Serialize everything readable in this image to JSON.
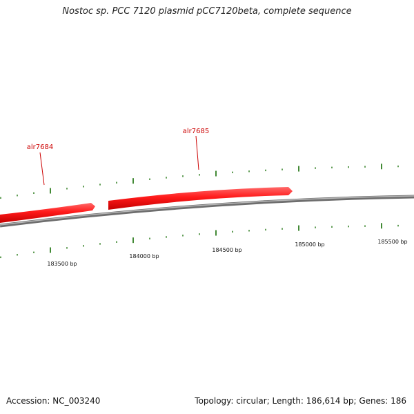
{
  "title": "Nostoc sp. PCC 7120 plasmid pCC7120beta, complete sequence",
  "footer": {
    "accession": "Accession: NC_003240",
    "summary": "Topology: circular; Length: 186,614 bp; Genes: 186"
  },
  "genes": [
    {
      "name": "alr7684",
      "strand": "+",
      "color": "#ff0000"
    },
    {
      "name": "alr7685",
      "strand": "+",
      "color": "#ff0000"
    }
  ],
  "ruler_labels": [
    "183500 bp",
    "184000 bp",
    "184500 bp",
    "185000 bp",
    "185500 bp"
  ],
  "colors": {
    "gene": "#ff2020",
    "backbone": "#8c8c8c",
    "tick": "#2e7d1f",
    "gene_label": "#cc0000"
  }
}
